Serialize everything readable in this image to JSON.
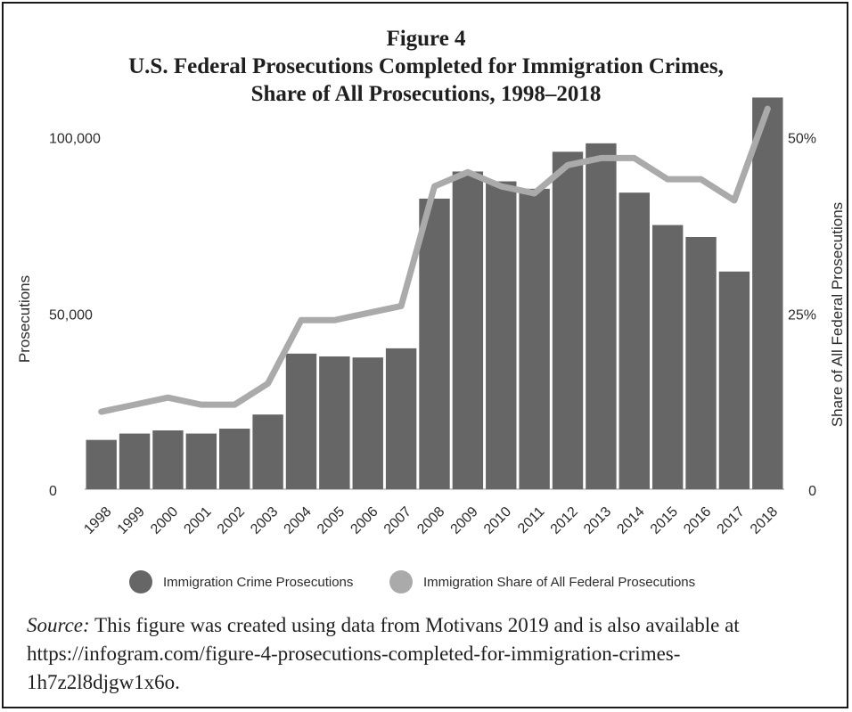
{
  "title": {
    "figure_label": "Figure 4",
    "line1": "U.S. Federal Prosecutions Completed for Immigration Crimes,",
    "line2": "Share of All Prosecutions, 1998–2018"
  },
  "legend": {
    "bars_label": "Immigration Crime Prosecutions",
    "line_label": "Immigration Share of All Federal Prosecutions"
  },
  "source": {
    "label": "Source:",
    "text": " This figure was created using data from Motivans 2019 and is also available at https://infogram.com/figure-4-prosecutions-completed-for-immigration-crimes-1h7z2l8djgw1x6o."
  },
  "colors": {
    "bars": "#666666",
    "line": "#aaaaaa",
    "axis": "#c8c8c8",
    "text": "#2b2b2b"
  },
  "chart_data": {
    "type": "bar",
    "title": "U.S. Federal Prosecutions Completed for Immigration Crimes, Share of All Prosecutions, 1998–2018",
    "categories": [
      "1998",
      "1999",
      "2000",
      "2001",
      "2002",
      "2003",
      "2004",
      "2005",
      "2006",
      "2007",
      "2008",
      "2009",
      "2010",
      "2011",
      "2012",
      "2013",
      "2014",
      "2015",
      "2016",
      "2017",
      "2018"
    ],
    "series": [
      {
        "name": "Immigration Crime Prosecutions",
        "type": "bar",
        "axis": "left",
        "values": [
          14000,
          15800,
          16700,
          15800,
          17200,
          21200,
          38500,
          37700,
          37400,
          40000,
          82500,
          90200,
          87400,
          85300,
          95800,
          98200,
          84200,
          75000,
          71600,
          61800,
          111200
        ]
      },
      {
        "name": "Immigration Share of All Federal Prosecutions",
        "type": "line",
        "axis": "right",
        "values": [
          11,
          12,
          13,
          12,
          12,
          15,
          24,
          24,
          25,
          26,
          43,
          45,
          43,
          42,
          46,
          47,
          47,
          44,
          44,
          41,
          54
        ]
      }
    ],
    "ylabel": "Prosecutions",
    "y2label": "Share of All Federal Prosecutions",
    "yticks": [
      "0",
      "50,000",
      "100,000"
    ],
    "ylim": [
      0,
      106000
    ],
    "y2ticks": [
      "0",
      "25%",
      "50%"
    ],
    "y2lim": [
      0,
      53
    ],
    "grid": false,
    "legend_position": "bottom"
  }
}
